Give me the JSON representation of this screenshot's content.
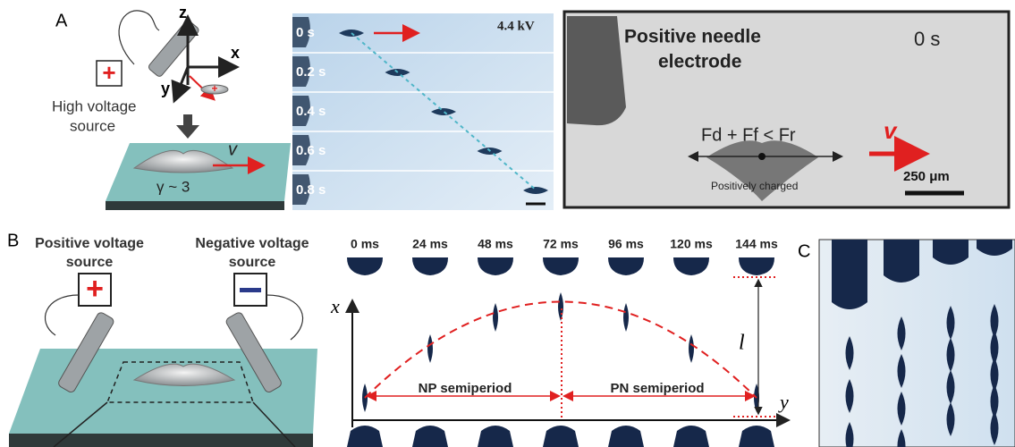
{
  "panel_a": {
    "label": "A",
    "schematic": {
      "axes": [
        "z",
        "x",
        "y"
      ],
      "source_sign": "+",
      "source_label": [
        "High voltage",
        "source"
      ],
      "velocity": "v",
      "gamma": "γ ~ 3"
    },
    "sequence": {
      "times": [
        "0 s",
        "0.2 s",
        "0.4 s",
        "0.6 s",
        "0.8 s"
      ],
      "voltage": "4.4 kV"
    },
    "micrograph": {
      "electrode": [
        "Positive needle",
        "electrode"
      ],
      "time": "0 s",
      "forces": "Fd + Ff < Fr",
      "velocity": "v",
      "charge": "Positively charged",
      "scale": "250 μm"
    }
  },
  "panel_b": {
    "label": "B",
    "positive_source": [
      "Positive voltage",
      "source"
    ],
    "negative_source": [
      "Negative voltage",
      "source"
    ],
    "positive_sign": "+",
    "times": [
      "0 ms",
      "24 ms",
      "48 ms",
      "72 ms",
      "96 ms",
      "120 ms",
      "144 ms"
    ],
    "x_axis": "x",
    "y_axis": "y",
    "amplitude": "l",
    "np": "NP semiperiod",
    "pn": "PN semiperiod"
  },
  "panel_c": {
    "label": "C"
  }
}
